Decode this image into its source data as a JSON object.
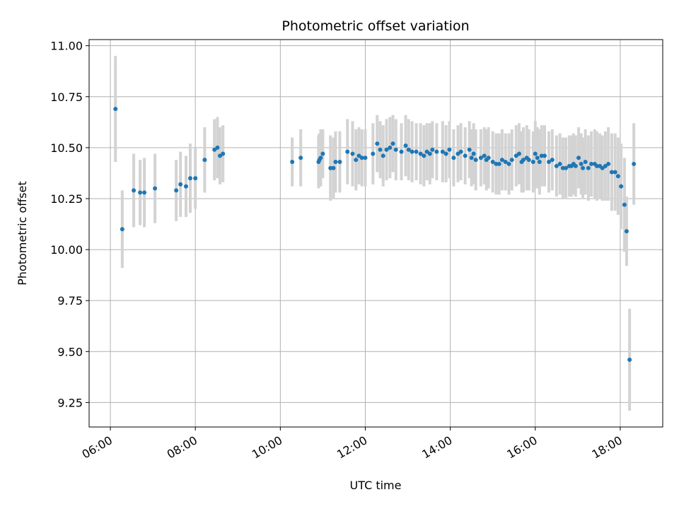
{
  "chart_data": {
    "type": "scatter",
    "title": "Photometric offset variation",
    "xlabel": "UTC time",
    "ylabel": "Photometric offset",
    "x_unit": "hours (UTC)",
    "xlim": [
      5.5,
      19.0
    ],
    "ylim": [
      9.13,
      11.03
    ],
    "grid": true,
    "x_ticks": [
      6,
      8,
      10,
      12,
      14,
      16,
      18
    ],
    "x_tick_labels": [
      "06:00",
      "08:00",
      "10:00",
      "12:00",
      "14:00",
      "16:00",
      "18:00"
    ],
    "y_ticks": [
      9.25,
      9.5,
      9.75,
      10.0,
      10.25,
      10.5,
      10.75,
      11.0
    ],
    "y_tick_labels": [
      "9.25",
      "9.50",
      "9.75",
      "10.00",
      "10.25",
      "10.50",
      "10.75",
      "11.00"
    ],
    "point_color": "#1f77b4",
    "errorbar_color": "#d3d3d3",
    "x": [
      6.12,
      6.28,
      6.55,
      6.7,
      6.8,
      7.05,
      7.55,
      7.65,
      7.78,
      7.88,
      8.0,
      8.22,
      8.45,
      8.52,
      8.58,
      8.65,
      10.28,
      10.48,
      10.9,
      10.92,
      10.95,
      11.0,
      11.18,
      11.25,
      11.3,
      11.4,
      11.58,
      11.7,
      11.78,
      11.85,
      11.92,
      12.0,
      12.18,
      12.28,
      12.35,
      12.42,
      12.5,
      12.58,
      12.65,
      12.72,
      12.85,
      12.95,
      13.02,
      13.1,
      13.2,
      13.3,
      13.38,
      13.45,
      13.52,
      13.58,
      13.68,
      13.82,
      13.9,
      13.98,
      14.08,
      14.18,
      14.25,
      14.35,
      14.45,
      14.5,
      14.55,
      14.6,
      14.72,
      14.8,
      14.85,
      14.9,
      15.0,
      15.08,
      15.15,
      15.22,
      15.3,
      15.38,
      15.45,
      15.55,
      15.62,
      15.68,
      15.72,
      15.8,
      15.85,
      15.95,
      16.0,
      16.05,
      16.1,
      16.15,
      16.22,
      16.32,
      16.4,
      16.5,
      16.58,
      16.65,
      16.72,
      16.8,
      16.85,
      16.9,
      16.95,
      17.02,
      17.08,
      17.12,
      17.18,
      17.25,
      17.32,
      17.4,
      17.45,
      17.52,
      17.58,
      17.65,
      17.72,
      17.8,
      17.88,
      17.95,
      18.02,
      18.1,
      18.15,
      18.22,
      18.32
    ],
    "y": [
      10.69,
      10.1,
      10.29,
      10.28,
      10.28,
      10.3,
      10.29,
      10.32,
      10.31,
      10.35,
      10.35,
      10.44,
      10.49,
      10.5,
      10.46,
      10.47,
      10.43,
      10.45,
      10.43,
      10.44,
      10.45,
      10.47,
      10.4,
      10.4,
      10.43,
      10.43,
      10.48,
      10.47,
      10.44,
      10.46,
      10.45,
      10.45,
      10.47,
      10.52,
      10.49,
      10.46,
      10.49,
      10.5,
      10.52,
      10.49,
      10.48,
      10.51,
      10.49,
      10.48,
      10.48,
      10.47,
      10.46,
      10.48,
      10.47,
      10.49,
      10.48,
      10.48,
      10.47,
      10.49,
      10.45,
      10.47,
      10.48,
      10.46,
      10.49,
      10.45,
      10.47,
      10.44,
      10.45,
      10.46,
      10.44,
      10.45,
      10.43,
      10.42,
      10.42,
      10.44,
      10.43,
      10.42,
      10.44,
      10.46,
      10.47,
      10.43,
      10.44,
      10.45,
      10.44,
      10.43,
      10.47,
      10.45,
      10.43,
      10.46,
      10.46,
      10.43,
      10.44,
      10.41,
      10.42,
      10.4,
      10.4,
      10.41,
      10.41,
      10.42,
      10.41,
      10.45,
      10.42,
      10.4,
      10.43,
      10.4,
      10.42,
      10.42,
      10.41,
      10.41,
      10.4,
      10.41,
      10.42,
      10.38,
      10.38,
      10.36,
      10.31,
      10.22,
      10.09,
      9.46,
      10.42
    ],
    "err": [
      0.26,
      0.19,
      0.18,
      0.16,
      0.17,
      0.17,
      0.15,
      0.16,
      0.15,
      0.17,
      0.15,
      0.16,
      0.15,
      0.15,
      0.14,
      0.14,
      0.12,
      0.14,
      0.13,
      0.13,
      0.14,
      0.12,
      0.16,
      0.15,
      0.15,
      0.15,
      0.16,
      0.16,
      0.15,
      0.14,
      0.14,
      0.14,
      0.15,
      0.14,
      0.14,
      0.15,
      0.15,
      0.15,
      0.14,
      0.15,
      0.14,
      0.15,
      0.15,
      0.15,
      0.14,
      0.15,
      0.15,
      0.14,
      0.15,
      0.14,
      0.14,
      0.15,
      0.14,
      0.14,
      0.14,
      0.14,
      0.14,
      0.14,
      0.14,
      0.14,
      0.15,
      0.15,
      0.14,
      0.14,
      0.15,
      0.15,
      0.15,
      0.15,
      0.15,
      0.15,
      0.14,
      0.15,
      0.15,
      0.15,
      0.15,
      0.15,
      0.16,
      0.16,
      0.15,
      0.15,
      0.16,
      0.15,
      0.16,
      0.15,
      0.15,
      0.15,
      0.15,
      0.15,
      0.15,
      0.15,
      0.15,
      0.15,
      0.15,
      0.15,
      0.15,
      0.15,
      0.15,
      0.15,
      0.16,
      0.16,
      0.16,
      0.17,
      0.17,
      0.16,
      0.16,
      0.17,
      0.18,
      0.19,
      0.19,
      0.19,
      0.21,
      0.23,
      0.17,
      0.25,
      0.2
    ]
  }
}
